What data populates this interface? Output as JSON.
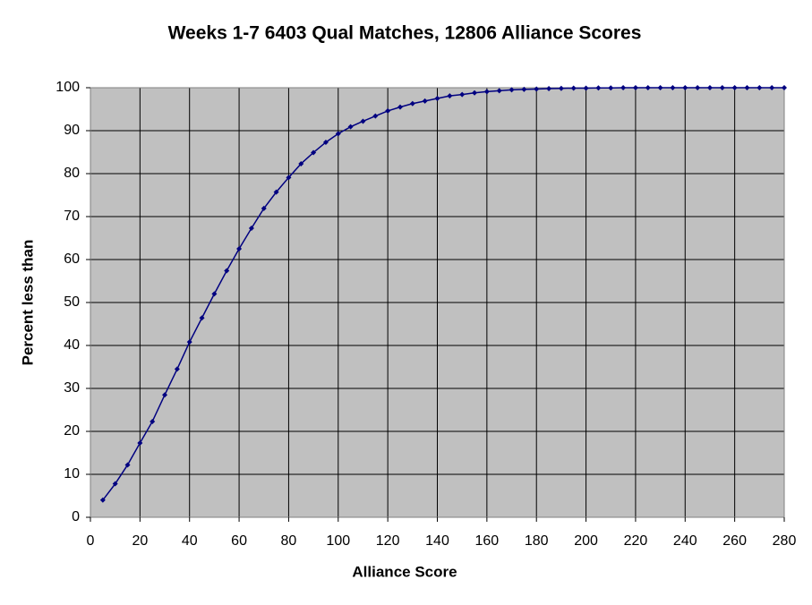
{
  "chart_data": {
    "type": "line",
    "title": "Weeks 1-7 6403 Qual Matches, 12806 Alliance Scores",
    "x_label": "Alliance Score",
    "y_label": "Percent less than",
    "x": [
      5,
      10,
      15,
      20,
      25,
      30,
      35,
      40,
      45,
      50,
      55,
      60,
      65,
      70,
      75,
      80,
      85,
      90,
      95,
      100,
      105,
      110,
      115,
      120,
      125,
      130,
      135,
      140,
      145,
      150,
      155,
      160,
      165,
      170,
      175,
      180,
      185,
      190,
      195,
      200,
      205,
      210,
      215,
      220,
      225,
      230,
      235,
      240,
      245,
      250,
      255,
      260,
      265,
      270,
      275,
      280
    ],
    "values": [
      4,
      7.8,
      12.2,
      17.3,
      22.3,
      28.5,
      34.5,
      40.8,
      46.4,
      52,
      57.4,
      62.5,
      67.3,
      71.9,
      75.7,
      79.1,
      82.3,
      84.9,
      87.3,
      89.3,
      90.9,
      92.2,
      93.4,
      94.6,
      95.5,
      96.3,
      96.9,
      97.5,
      98.1,
      98.4,
      98.8,
      99.1,
      99.3,
      99.5,
      99.6,
      99.7,
      99.8,
      99.85,
      99.9,
      99.9,
      99.95,
      99.95,
      100,
      100,
      100,
      100,
      100,
      100,
      100,
      100,
      100,
      100,
      100,
      100,
      100,
      100
    ],
    "color": "#000080",
    "xlim": [
      0,
      280
    ],
    "xticks": [
      0,
      20,
      40,
      60,
      80,
      100,
      120,
      140,
      160,
      180,
      200,
      220,
      240,
      260,
      280
    ],
    "ylim": [
      0,
      100
    ],
    "yticks": [
      0,
      10,
      20,
      30,
      40,
      50,
      60,
      70,
      80,
      90,
      100
    ],
    "grid": true
  }
}
